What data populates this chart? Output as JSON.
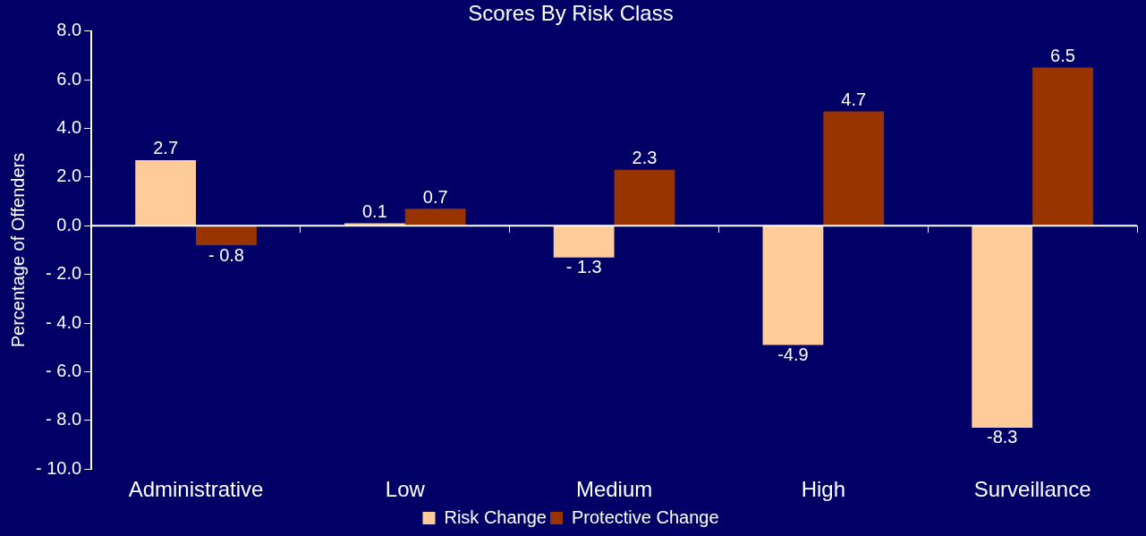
{
  "chart_data": {
    "type": "bar",
    "title": "Scores By Risk Class",
    "ylabel": "Percentage of Offenders",
    "categories": [
      "Administrative",
      "Low",
      "Medium",
      "High",
      "Surveillance"
    ],
    "series": [
      {
        "name": "Risk Change",
        "color": "#ffcc99",
        "values": [
          2.7,
          0.1,
          -1.3,
          -4.9,
          -8.3
        ],
        "value_labels": [
          "2.7",
          "0.1",
          "- 1.3",
          "-4.9",
          "-8.3"
        ]
      },
      {
        "name": "Protective Change",
        "color": "#993300",
        "values": [
          -0.8,
          0.7,
          2.3,
          4.7,
          6.5
        ],
        "value_labels": [
          "- 0.8",
          "0.7",
          "2.3",
          "4.7",
          "6.5"
        ]
      }
    ],
    "ylim": [
      -10,
      8
    ],
    "yticks": [
      {
        "value": -10,
        "label": "- 10.0"
      },
      {
        "value": -8,
        "label": "- 8.0"
      },
      {
        "value": -6,
        "label": "- 6.0"
      },
      {
        "value": -4,
        "label": "- 4.0"
      },
      {
        "value": -2,
        "label": "- 2.0"
      },
      {
        "value": 0,
        "label": "0.0"
      },
      {
        "value": 2,
        "label": "2.0"
      },
      {
        "value": 4,
        "label": "4.0"
      },
      {
        "value": 6,
        "label": "6.0"
      },
      {
        "value": 8,
        "label": "8.0"
      }
    ],
    "ref_lines": [
      {
        "axis": "y",
        "value": 0,
        "color": "#ffffff"
      }
    ],
    "grid": false,
    "legend": "bottom"
  }
}
